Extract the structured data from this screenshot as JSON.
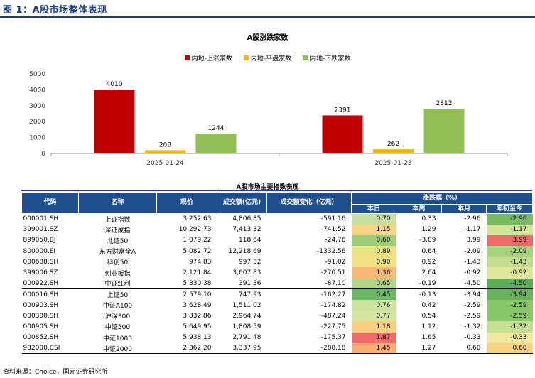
{
  "figure_title": "图 1：A股市场整体表现",
  "chart_data": {
    "type": "bar",
    "title": "A股涨跌家数",
    "categories": [
      "2025-01-24",
      "2025-01-23"
    ],
    "series": [
      {
        "name": "内地-上涨家数",
        "color": "#c00000",
        "values": [
          4010,
          2391
        ]
      },
      {
        "name": "内地-平盘家数",
        "color": "#f5b800",
        "values": [
          208,
          262
        ]
      },
      {
        "name": "内地-下跌家数",
        "color": "#92c056",
        "values": [
          1244,
          2812
        ]
      }
    ],
    "ylim": [
      0,
      5000
    ],
    "yticks": [
      "0",
      "1000",
      "2000",
      "3000",
      "4000",
      "5000"
    ],
    "xlabel": "",
    "ylabel": "",
    "legend_position": "top",
    "grid": false
  },
  "table": {
    "title": "A股市场主要指数表现",
    "headers": {
      "code": "代码",
      "name": "名称",
      "price": "现价",
      "turnover": "成交额(亿元)",
      "turnover_chg": "成交额变化（亿元）",
      "change_group": "涨跌幅（%）",
      "day": "本日",
      "week": "本周",
      "month": "本月",
      "ytd": "年初至今"
    },
    "rows": [
      {
        "code": "000001.SH",
        "name": "上证指数",
        "price": "3,252.63",
        "turnover": "4,806.85",
        "turnover_chg": "-591.16",
        "day": "0.70",
        "week": "0.33",
        "month": "-2.96",
        "ytd": "-2.96",
        "day_color": "#c6dfa0",
        "ytd_color": "#78bb62"
      },
      {
        "code": "399001.SZ",
        "name": "深证成指",
        "price": "10,292.73",
        "turnover": "7,413.32",
        "turnover_chg": "-741.52",
        "day": "1.15",
        "week": "1.29",
        "month": "-1.17",
        "ytd": "-1.17",
        "day_color": "#fbd585",
        "ytd_color": "#d1e49a"
      },
      {
        "code": "899050.BJ",
        "name": "北证50",
        "price": "1,079.22",
        "turnover": "118.64",
        "turnover_chg": "-24.76",
        "day": "0.60",
        "week": "-3.89",
        "month": "3.99",
        "ytd": "3.99",
        "day_color": "#9dcd78",
        "ytd_color": "#f06a6a"
      },
      {
        "code": "800000.EI",
        "name": "东方财富全A",
        "price": "5,082.72",
        "turnover": "12,218.69",
        "turnover_chg": "-1332.56",
        "day": "0.89",
        "week": "0.64",
        "month": "-2.09",
        "ytd": "-2.09",
        "day_color": "#eae283",
        "ytd_color": "#a9d17e"
      },
      {
        "code": "000688.SH",
        "name": "科创50",
        "price": "974.83",
        "turnover": "997.32",
        "turnover_chg": "-91.02",
        "day": "0.90",
        "week": "0.92",
        "month": "-1.43",
        "ytd": "-1.43",
        "day_color": "#f0e284",
        "ytd_color": "#c2dd90"
      },
      {
        "code": "399006.SZ",
        "name": "创业板指",
        "price": "2,121.84",
        "turnover": "3,607.83",
        "turnover_chg": "-270.51",
        "day": "1.36",
        "week": "2.64",
        "month": "-0.92",
        "ytd": "-0.92",
        "day_color": "#f8b878",
        "ytd_color": "#dfe79e"
      },
      {
        "code": "000922.SH",
        "name": "中证红利",
        "price": "5,330.38",
        "turnover": "391.36",
        "turnover_chg": "-87.10",
        "day": "0.65",
        "week": "-0.19",
        "month": "-4.50",
        "ytd": "-4.50",
        "day_color": "#b0d685",
        "ytd_color": "#5cae59"
      },
      {
        "code": "000016.SH",
        "name": "上证50",
        "price": "2,579.10",
        "turnover": "747.93",
        "turnover_chg": "-162.27",
        "day": "0.45",
        "week": "-0.13",
        "month": "-3.94",
        "ytd": "-3.94",
        "day_color": "#6cb766",
        "ytd_color": "#68b25e"
      },
      {
        "code": "000903.SH",
        "name": "中证A100",
        "price": "3,628.49",
        "turnover": "1,511.02",
        "turnover_chg": "-174.82",
        "day": "0.76",
        "week": "0.42",
        "month": "-2.59",
        "ytd": "-2.59",
        "day_color": "#cfe3a0",
        "ytd_color": "#8ac66b"
      },
      {
        "code": "000300.SH",
        "name": "沪深300",
        "price": "3,832.86",
        "turnover": "2,964.74",
        "turnover_chg": "-487.24",
        "day": "0.77",
        "week": "0.54",
        "month": "-2.59",
        "ytd": "-2.59",
        "day_color": "#d6e5a2",
        "ytd_color": "#8ac66b"
      },
      {
        "code": "000905.SH",
        "name": "中证500",
        "price": "5,649.95",
        "turnover": "1,808.59",
        "turnover_chg": "-227.75",
        "day": "1.18",
        "week": "1.12",
        "month": "-1.32",
        "ytd": "-1.32",
        "day_color": "#fbcf82",
        "ytd_color": "#c7df94"
      },
      {
        "code": "000852.SH",
        "name": "中证1000",
        "price": "5,938.13",
        "turnover": "2,791.48",
        "turnover_chg": "-175.37",
        "day": "1.87",
        "week": "1.65",
        "month": "-0.33",
        "ytd": "-0.33",
        "day_color": "#f06a6a",
        "ytd_color": "#f2e89f"
      },
      {
        "code": "932000.CSI",
        "name": "中证2000",
        "price": "2,362.20",
        "turnover": "3,337.95",
        "turnover_chg": "-288.18",
        "day": "1.45",
        "week": "1.27",
        "month": "0.60",
        "ytd": "0.60",
        "day_color": "#f7ad74",
        "ytd_color": "#fbd282"
      }
    ]
  },
  "footnote": "资料来源：Choice，国元证券研究所"
}
